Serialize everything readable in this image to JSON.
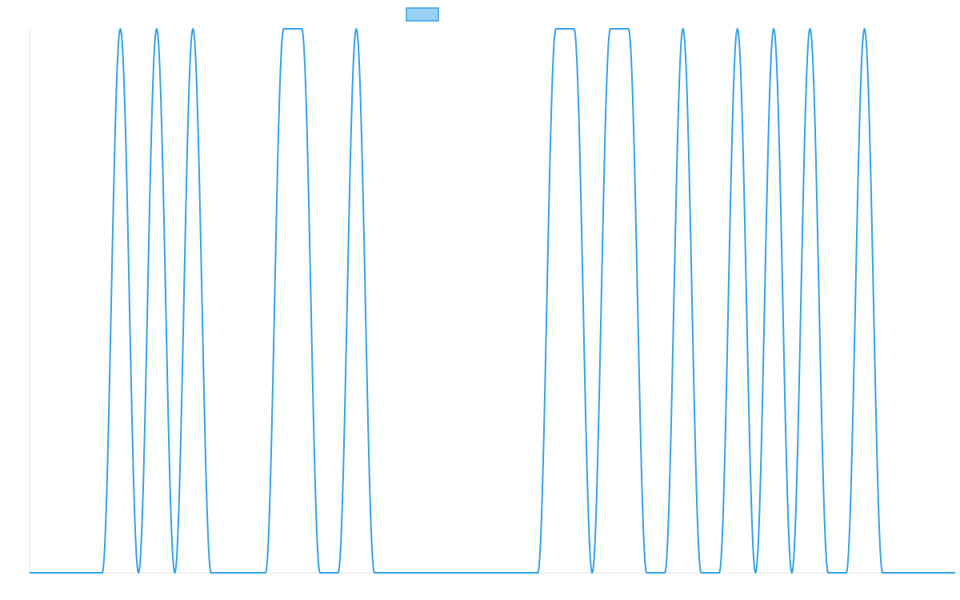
{
  "colors": {
    "series_line": "#36a2eb",
    "legend_fill": "#9ad0f5",
    "axis_line": "#e6e6e6"
  },
  "chart_data": {
    "type": "line",
    "title": "",
    "xlabel": "",
    "ylabel": "",
    "legend_position": "top",
    "grid": false,
    "xlim": [
      0,
      51
    ],
    "ylim": [
      0,
      1
    ],
    "series": [
      {
        "x": [
          0,
          4,
          5,
          6,
          7,
          8,
          9,
          10,
          13,
          14,
          15,
          16,
          17,
          18,
          19,
          20,
          28,
          29,
          30,
          31,
          32,
          33,
          34,
          35,
          36,
          37,
          38,
          39,
          40,
          41,
          42,
          43,
          44,
          45,
          46,
          47,
          48,
          51
        ],
        "values": [
          0,
          0,
          1,
          0,
          1,
          0,
          1,
          0,
          0,
          1,
          1,
          0,
          0,
          1,
          0,
          0,
          0,
          1,
          1,
          0,
          1,
          1,
          0,
          0,
          1,
          0,
          0,
          1,
          0,
          1,
          0,
          1,
          0,
          0,
          1,
          0,
          0,
          0
        ]
      }
    ]
  }
}
